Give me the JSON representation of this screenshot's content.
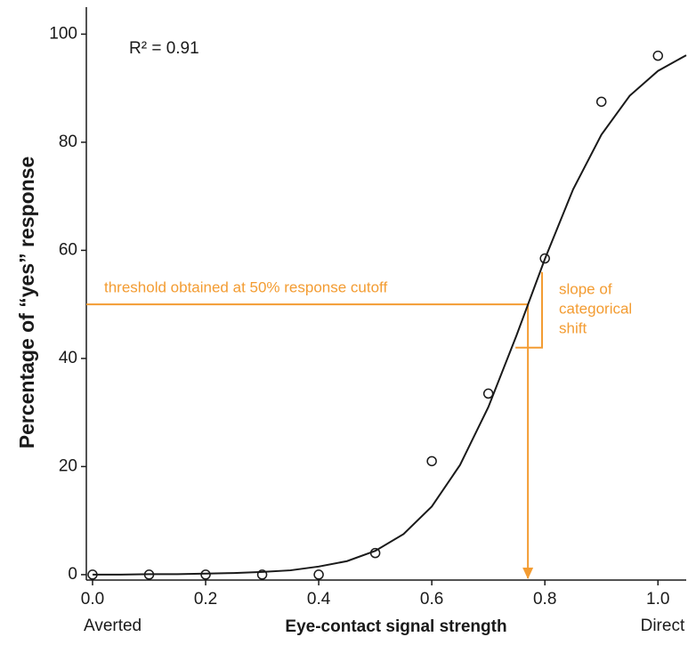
{
  "chart_data": {
    "type": "scatter",
    "annotation": "R² = 0.91",
    "xlabel": "Eye-contact signal strength",
    "ylabel": "Percentage of “yes” response",
    "x_end_labels": [
      "Averted",
      "Direct"
    ],
    "x": [
      0,
      0.1,
      0.2,
      0.3,
      0.4,
      0.5,
      0.6,
      0.7,
      0.8,
      0.9,
      1.0
    ],
    "values": [
      0,
      0,
      0,
      0,
      0,
      4,
      21,
      33.5,
      58.5,
      87.5,
      96
    ],
    "color": "#1a1a1a",
    "curve": {
      "x": [
        0,
        0.05,
        0.1,
        0.15,
        0.2,
        0.25,
        0.3,
        0.35,
        0.4,
        0.45,
        0.5,
        0.55,
        0.6,
        0.65,
        0.7,
        0.75,
        0.8,
        0.85,
        0.9,
        0.95,
        1.0,
        1.05
      ],
      "values": [
        0,
        0,
        0.1,
        0.1,
        0.2,
        0.3,
        0.5,
        0.8,
        1.5,
        2.5,
        4.4,
        7.5,
        12.6,
        20.3,
        31,
        44.3,
        58.4,
        71.3,
        81.4,
        88.6,
        93.2,
        96.1
      ],
      "color": "#1a1a1a"
    },
    "threshold": {
      "x": 0.77,
      "y": 50,
      "label": "threshold obtained at 50% response cutoff",
      "color": "#f39c32"
    },
    "slope_label": [
      "slope of",
      "categorical",
      "shift"
    ],
    "slope_triangle": {
      "x": [
        0.748,
        0.795
      ],
      "y": [
        42,
        56
      ]
    },
    "xlim": [
      -0.011,
      1.05
    ],
    "ylim": [
      -1,
      105
    ],
    "xticks": [
      {
        "value": 0,
        "label": "0.0"
      },
      0.2,
      0.4,
      0.6,
      0.8,
      {
        "value": 1,
        "label": "1.0"
      }
    ],
    "yticks": [
      0,
      20,
      40,
      60,
      80,
      100
    ]
  }
}
